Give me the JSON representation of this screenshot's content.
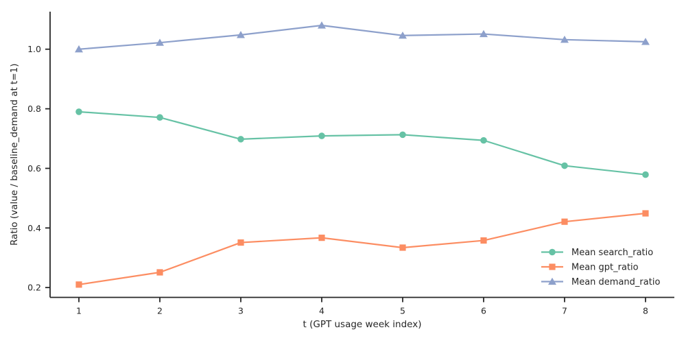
{
  "figure": {
    "background": "#ffffff",
    "axis_color": "#262626",
    "text_color": "#262626"
  },
  "chart_data": {
    "type": "line",
    "title": "",
    "xlabel": "t (GPT usage week index)",
    "ylabel": "Ratio (value / baseline_demand at t=1)",
    "x": [
      1,
      2,
      3,
      4,
      5,
      6,
      7,
      8
    ],
    "xtick_labels": [
      "1",
      "2",
      "3",
      "4",
      "5",
      "6",
      "7",
      "8"
    ],
    "ytick_values": [
      0.2,
      0.4,
      0.6,
      0.8,
      1.0
    ],
    "ytick_labels": [
      "0.2",
      "0.4",
      "0.6",
      "0.8",
      "1.0"
    ],
    "xlim": [
      0.644,
      8.356
    ],
    "ylim": [
      0.167,
      1.126
    ],
    "grid": false,
    "legend_position": "lower right",
    "series": [
      {
        "name": "Mean search_ratio",
        "marker": "circle",
        "color": "#66c2a5",
        "values": [
          0.79,
          0.771,
          0.698,
          0.709,
          0.713,
          0.694,
          0.609,
          0.579
        ]
      },
      {
        "name": "Mean gpt_ratio",
        "marker": "square",
        "color": "#fc8d62",
        "values": [
          0.21,
          0.251,
          0.351,
          0.367,
          0.334,
          0.358,
          0.421,
          0.449
        ]
      },
      {
        "name": "Mean demand_ratio",
        "marker": "triangle",
        "color": "#8da0cb",
        "values": [
          1.0,
          1.022,
          1.048,
          1.08,
          1.046,
          1.051,
          1.032,
          1.025
        ]
      }
    ]
  }
}
